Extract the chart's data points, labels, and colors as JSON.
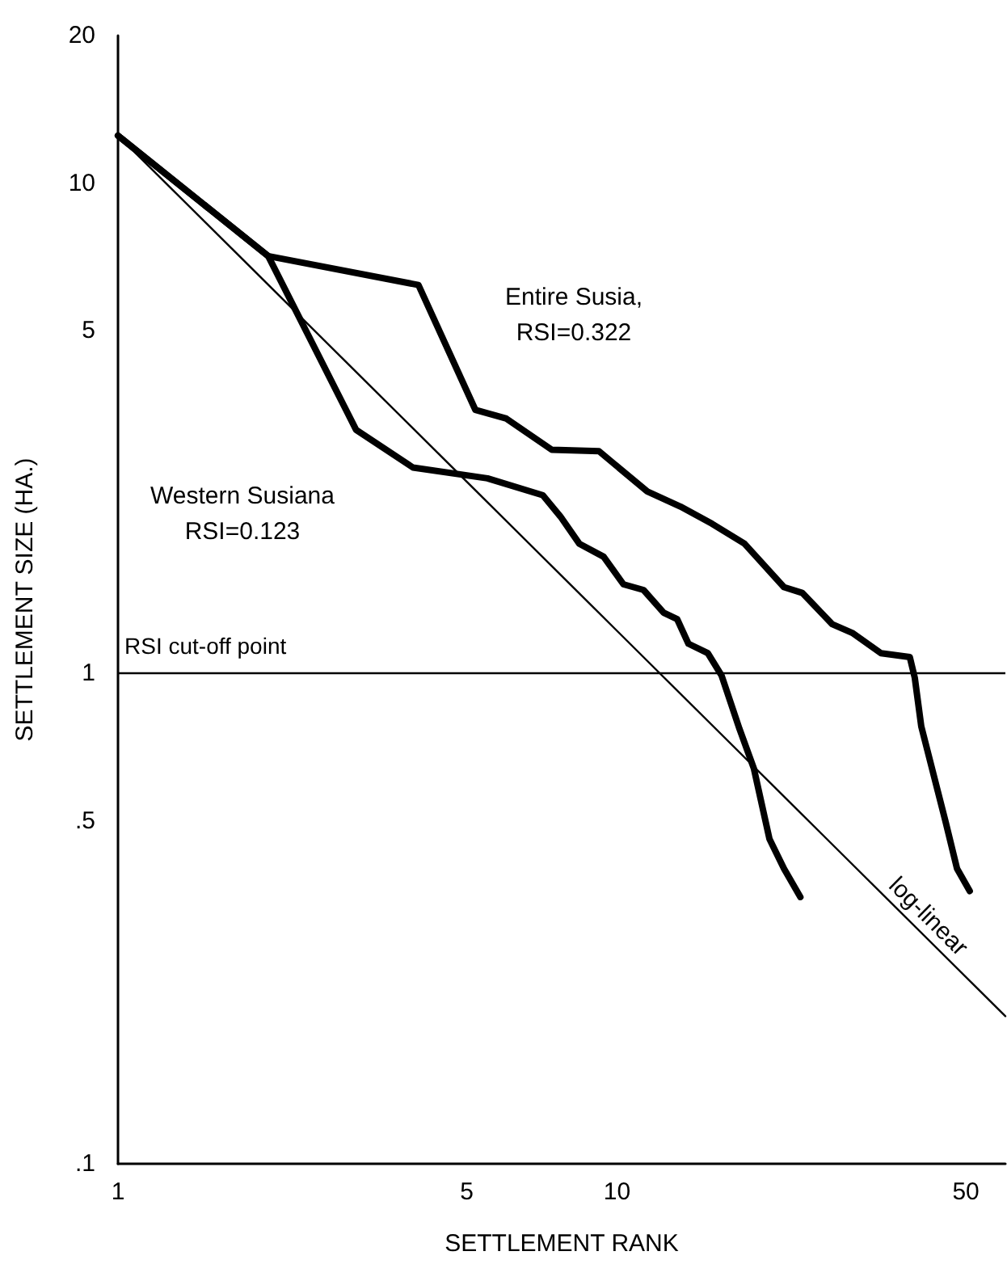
{
  "chart_data": {
    "type": "line",
    "xlabel": "SETTLEMENT RANK",
    "ylabel": "SETTLEMENT SIZE (HA.)",
    "log": "xy",
    "xlim": [
      1,
      60
    ],
    "ylim": [
      0.1,
      20
    ],
    "xticks": [
      1,
      5,
      10,
      50
    ],
    "yticks": [
      {
        "value": 0.1,
        "label": ".1"
      },
      {
        "value": 0.5,
        "label": ".5"
      },
      1,
      5,
      10,
      20
    ],
    "grid": false,
    "legend": false,
    "marker": "none",
    "series": [
      {
        "name": "Entire Susia,\nRSI=0.322",
        "color": "#000000",
        "x": [
          1,
          2,
          4,
          5.2,
          6.0,
          7.4,
          9.2,
          11.5,
          13.4,
          15.5,
          18.0,
          21.6,
          23.5,
          27.0,
          29.6,
          33.8,
          38.6,
          39.5,
          40.7,
          45.5,
          48,
          50.9
        ],
        "values": [
          12.5,
          7.1,
          6.2,
          3.45,
          3.31,
          2.86,
          2.84,
          2.35,
          2.19,
          2.02,
          1.84,
          1.5,
          1.46,
          1.26,
          1.21,
          1.1,
          1.08,
          0.98,
          0.78,
          0.5,
          0.4,
          0.36
        ]
      },
      {
        "name": "Western Susiana\nRSI=0.123",
        "color": "#000000",
        "x": [
          1,
          2,
          3,
          3.9,
          5.5,
          7.1,
          7.7,
          8.4,
          9.4,
          10.3,
          11.3,
          12.4,
          13.2,
          13.9,
          15.2,
          16.2,
          17.6,
          18.8,
          20.2,
          21.6,
          23.3
        ],
        "values": [
          12.5,
          7.1,
          3.14,
          2.63,
          2.5,
          2.31,
          2.09,
          1.84,
          1.73,
          1.52,
          1.48,
          1.33,
          1.29,
          1.15,
          1.1,
          0.99,
          0.77,
          0.64,
          0.46,
          0.4,
          0.35
        ]
      },
      {
        "name": "log-linear",
        "color": "#000000",
        "line_style": "solid",
        "x": [
          1,
          60
        ],
        "values": [
          12.5,
          0.2
        ]
      }
    ],
    "ref_lines": [
      {
        "axis": "y",
        "value": 1,
        "label": "RSI cut-off point",
        "color": "#000000"
      }
    ]
  }
}
